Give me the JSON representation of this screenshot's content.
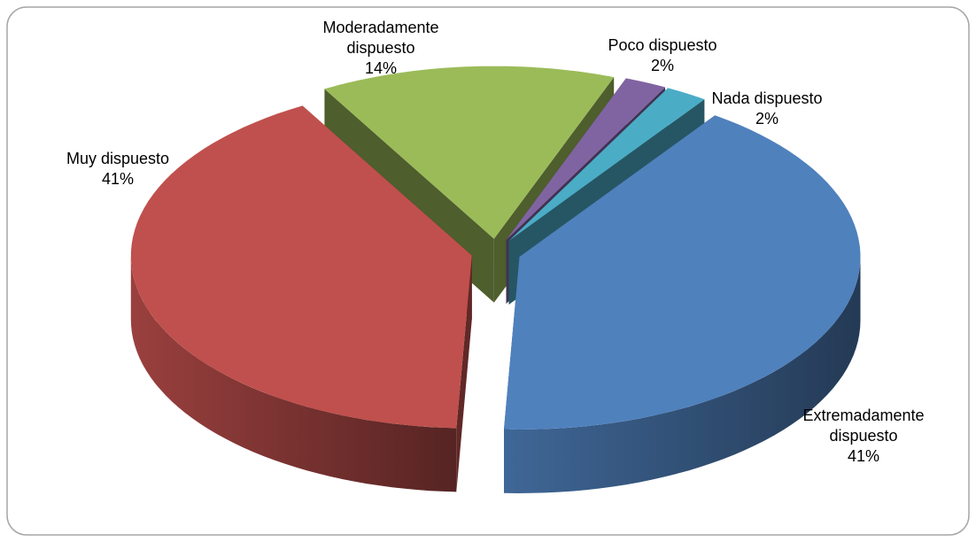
{
  "chart_data": {
    "type": "pie3d",
    "categories": [
      "Extremadamente dispuesto",
      "Muy dispuesto",
      "Moderadamente dispuesto",
      "Poco dispuesto",
      "Nada dispuesto"
    ],
    "values": [
      41,
      41,
      14,
      2,
      2
    ],
    "value_labels": [
      "41%",
      "41%",
      "14%",
      "2%",
      "2%"
    ],
    "colors": [
      "#4f81bd",
      "#c0504d",
      "#9bbb59",
      "#8064a2",
      "#4bacc6"
    ]
  }
}
